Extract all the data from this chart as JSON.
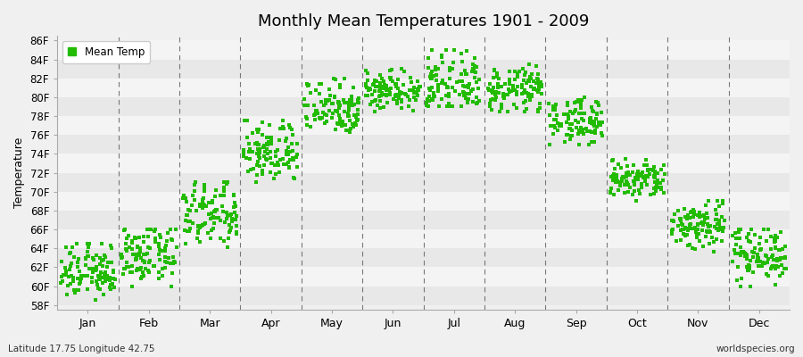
{
  "title": "Monthly Mean Temperatures 1901 - 2009",
  "ylabel": "Temperature",
  "xlabel_bottom_left": "Latitude 17.75 Longitude 42.75",
  "xlabel_bottom_right": "worldspecies.org",
  "legend_label": "Mean Temp",
  "background_color": "#f0f0f0",
  "plot_bg_color": "#f0f0f0",
  "marker_color": "#22bb00",
  "marker_size": 7,
  "yticks": [
    "58F",
    "60F",
    "62F",
    "64F",
    "66F",
    "68F",
    "70F",
    "72F",
    "74F",
    "76F",
    "78F",
    "80F",
    "82F",
    "84F",
    "86F"
  ],
  "yvalues": [
    58,
    60,
    62,
    64,
    66,
    68,
    70,
    72,
    74,
    76,
    78,
    80,
    82,
    84,
    86
  ],
  "ylim": [
    57.5,
    86.5
  ],
  "months": [
    "Jan",
    "Feb",
    "Mar",
    "Apr",
    "May",
    "Jun",
    "Jul",
    "Aug",
    "Sep",
    "Oct",
    "Nov",
    "Dec"
  ],
  "month_centers": [
    0.5,
    1.5,
    2.5,
    3.5,
    4.5,
    5.5,
    6.5,
    7.5,
    8.5,
    9.5,
    10.5,
    11.5
  ],
  "month_boundaries": [
    1,
    2,
    3,
    4,
    5,
    6,
    7,
    8,
    9,
    10,
    11
  ],
  "mean_temps": [
    61.5,
    63.2,
    67.5,
    74.2,
    79.0,
    80.8,
    81.2,
    80.8,
    77.5,
    71.2,
    66.5,
    63.5
  ],
  "temp_min": [
    59.0,
    60.5,
    64.5,
    71.5,
    76.5,
    79.0,
    79.5,
    79.0,
    75.5,
    69.5,
    64.0,
    60.5
  ],
  "temp_max": [
    64.0,
    65.5,
    70.5,
    77.0,
    81.5,
    82.5,
    84.5,
    83.0,
    79.5,
    73.0,
    68.5,
    65.5
  ],
  "n_years": 109
}
